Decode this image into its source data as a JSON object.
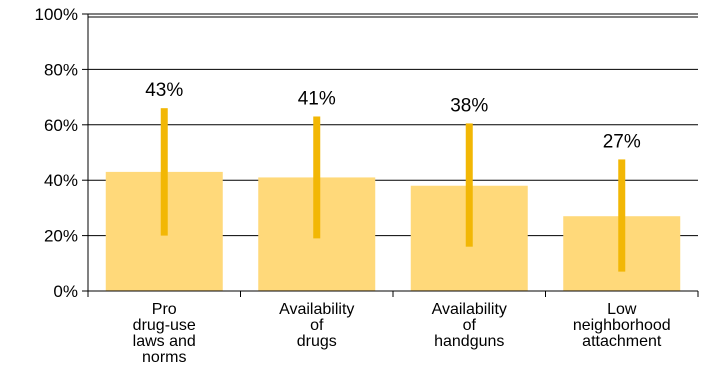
{
  "chart_data": {
    "type": "bar",
    "title": "",
    "xlabel": "",
    "ylabel": "",
    "ylim": [
      0,
      100
    ],
    "yticks": [
      "0%",
      "20%",
      "40%",
      "60%",
      "80%",
      "100%"
    ],
    "grid": true,
    "categories": [
      [
        "Pro",
        "drug-use",
        "laws and",
        "norms"
      ],
      [
        "Availability",
        "of",
        "drugs"
      ],
      [
        "Availability",
        "of",
        "handguns"
      ],
      [
        "Low",
        "neighborhood",
        "attachment"
      ]
    ],
    "values": [
      43,
      41,
      38,
      27
    ],
    "value_labels": [
      "43%",
      "41%",
      "38%",
      "27%"
    ],
    "error_ranges": [
      [
        20,
        66
      ],
      [
        19,
        63
      ],
      [
        16,
        60.5
      ],
      [
        7,
        47.5
      ]
    ],
    "colors": {
      "bar": "#ffd97a",
      "error_bar": "#f2b705",
      "grid": "#000000"
    }
  }
}
